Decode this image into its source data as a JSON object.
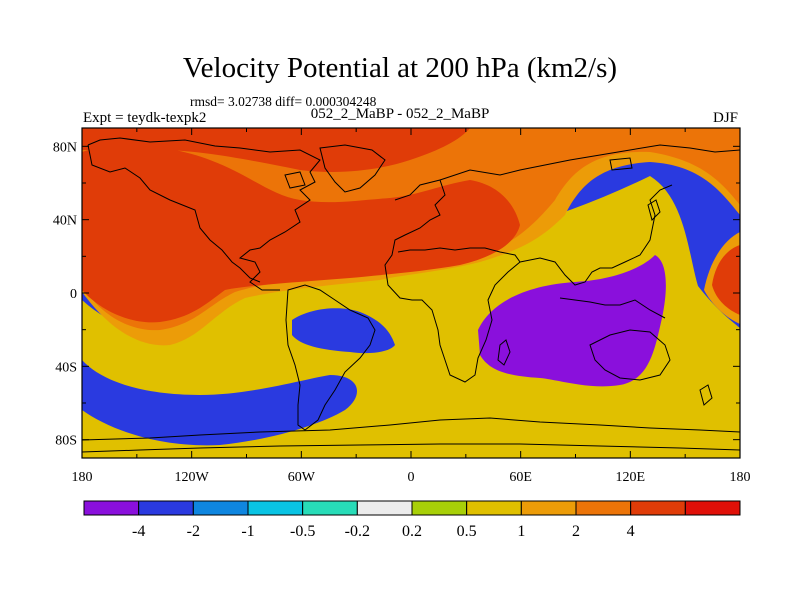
{
  "chart_data": {
    "type": "heatmap",
    "title": "Velocity Potential at 200 hPa (km2/s)",
    "stats_line": "rmsd= 3.02738 diff= 0.000304248",
    "experiment_label": "Expt = teydk-texpk2",
    "comparison_label": "052_2_MaBP - 052_2_MaBP",
    "season": "DJF",
    "x_ticks": [
      "180",
      "120W",
      "60W",
      "0",
      "60E",
      "120E",
      "180"
    ],
    "y_ticks": [
      "80N",
      "40N",
      "0",
      "40S",
      "80S"
    ],
    "xlim": [
      -180,
      180
    ],
    "ylim": [
      -90,
      90
    ],
    "colorbar_levels": [
      "-4",
      "-2",
      "-1",
      "-0.5",
      "-0.2",
      "0.2",
      "0.5",
      "1",
      "2",
      "4"
    ],
    "colorbar_colors": [
      "#8a10dc",
      "#2a3ae0",
      "#0f86e0",
      "#0ac4e4",
      "#28dcb8",
      "#ececec",
      "#a8d008",
      "#e0c000",
      "#ec9c08",
      "#ec7408",
      "#e03c08",
      "#e01008"
    ],
    "legend_position": "bottom"
  }
}
